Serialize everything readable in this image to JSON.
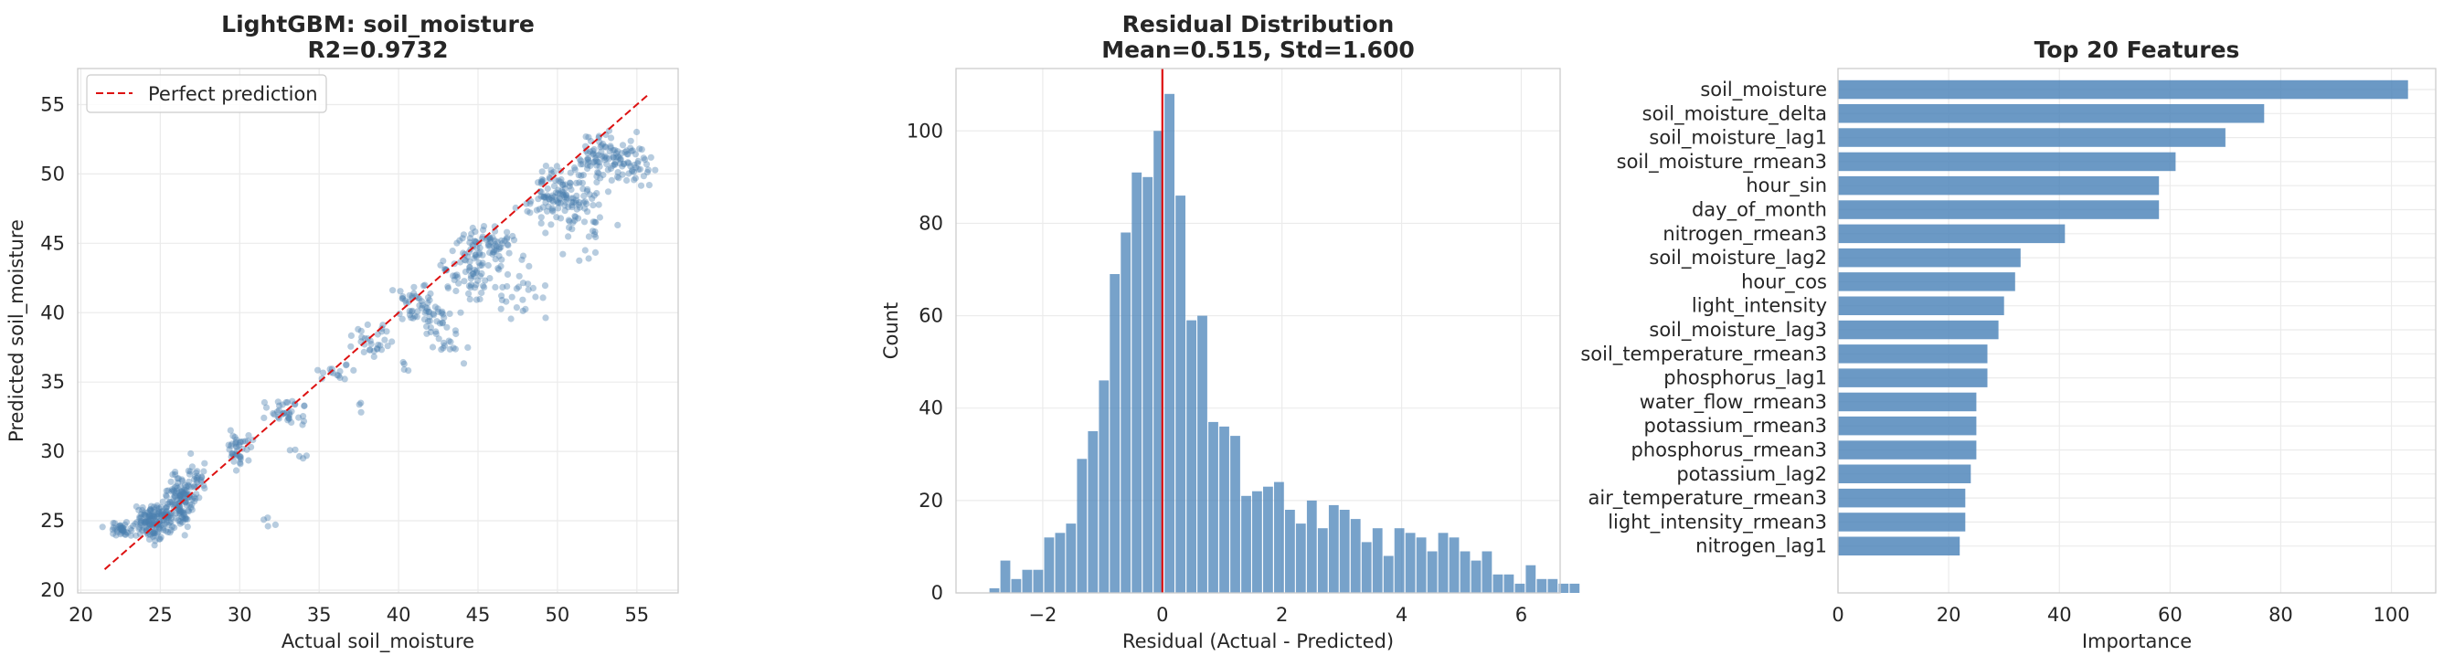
{
  "colors": {
    "points": "#4a7fb0",
    "bars": "#4a83b8",
    "reference_line": "#dd1111",
    "grid": "#ebebeb",
    "axes": "#cccccc"
  },
  "chart_data": [
    {
      "type": "scatter",
      "title": "LightGBM: soil_moisture",
      "subtitle": "R2=0.9732",
      "xlabel": "Actual soil_moisture",
      "ylabel": "Predicted soil_moisture",
      "xlim": [
        19.8,
        57.6
      ],
      "ylim": [
        19.8,
        57.6
      ],
      "xticks": [
        20,
        25,
        30,
        35,
        40,
        45,
        50,
        55
      ],
      "yticks": [
        20,
        25,
        30,
        35,
        40,
        45,
        50,
        55
      ],
      "grid": true,
      "legend": {
        "position": "top-left",
        "entries": [
          "Perfect prediction"
        ]
      },
      "reference_line": {
        "name": "Perfect prediction",
        "x": [
          21.5,
          55.8
        ],
        "y": [
          21.5,
          55.8
        ],
        "style": "dashed"
      },
      "clusters": [
        {
          "cx": 22.8,
          "cy": 24.4,
          "sx": 0.5,
          "sy": 0.25,
          "n": 40
        },
        {
          "cx": 24.8,
          "cy": 25.0,
          "sx": 0.6,
          "sy": 0.6,
          "n": 150
        },
        {
          "cx": 26.3,
          "cy": 26.5,
          "sx": 0.5,
          "sy": 0.9,
          "n": 120
        },
        {
          "cx": 27.3,
          "cy": 28.0,
          "sx": 0.35,
          "sy": 0.6,
          "n": 25
        },
        {
          "cx": 30.0,
          "cy": 30.1,
          "sx": 0.4,
          "sy": 0.6,
          "n": 40
        },
        {
          "cx": 31.8,
          "cy": 25.0,
          "sx": 0.3,
          "sy": 0.3,
          "n": 4
        },
        {
          "cx": 33.0,
          "cy": 32.8,
          "sx": 0.7,
          "sy": 0.5,
          "n": 35
        },
        {
          "cx": 34.0,
          "cy": 29.7,
          "sx": 0.4,
          "sy": 0.2,
          "n": 5
        },
        {
          "cx": 36.0,
          "cy": 35.7,
          "sx": 0.5,
          "sy": 0.5,
          "n": 15
        },
        {
          "cx": 37.6,
          "cy": 33.1,
          "sx": 0.2,
          "sy": 0.3,
          "n": 3
        },
        {
          "cx": 38.5,
          "cy": 38.0,
          "sx": 0.6,
          "sy": 0.6,
          "n": 30
        },
        {
          "cx": 40.3,
          "cy": 36.0,
          "sx": 0.2,
          "sy": 0.3,
          "n": 4
        },
        {
          "cx": 41.5,
          "cy": 40.5,
          "sx": 0.9,
          "sy": 0.8,
          "n": 60
        },
        {
          "cx": 43.0,
          "cy": 38.5,
          "sx": 0.6,
          "sy": 1.0,
          "n": 25
        },
        {
          "cx": 44.5,
          "cy": 43.5,
          "sx": 0.8,
          "sy": 1.2,
          "n": 80
        },
        {
          "cx": 46.0,
          "cy": 45.0,
          "sx": 0.8,
          "sy": 0.6,
          "n": 50
        },
        {
          "cx": 47.5,
          "cy": 42.0,
          "sx": 1.0,
          "sy": 1.2,
          "n": 30
        },
        {
          "cx": 50.0,
          "cy": 48.5,
          "sx": 1.0,
          "sy": 0.9,
          "n": 110
        },
        {
          "cx": 51.5,
          "cy": 46.5,
          "sx": 1.0,
          "sy": 1.2,
          "n": 40
        },
        {
          "cx": 53.3,
          "cy": 51.0,
          "sx": 1.1,
          "sy": 0.9,
          "n": 110
        },
        {
          "cx": 55.0,
          "cy": 50.5,
          "sx": 0.5,
          "sy": 0.8,
          "n": 20
        }
      ]
    },
    {
      "type": "bar",
      "subtype": "histogram",
      "title": "Residual Distribution",
      "subtitle": "Mean=0.515, Std=1.600",
      "xlabel": "Residual (Actual - Predicted)",
      "ylabel": "Count",
      "xlim": [
        -3.45,
        6.65
      ],
      "ylim": [
        0,
        113.5
      ],
      "xticks": [
        -2,
        0,
        2,
        4,
        6
      ],
      "yticks": [
        0,
        20,
        40,
        60,
        80,
        100
      ],
      "grid": true,
      "bin_start": -2.9,
      "bin_width": 0.183,
      "values": [
        1,
        7,
        3,
        5,
        5,
        12,
        13,
        15,
        29,
        35,
        46,
        69,
        78,
        91,
        90,
        100,
        108,
        86,
        59,
        60,
        37,
        36,
        34,
        21,
        22,
        23,
        24,
        18,
        15,
        20,
        14,
        19,
        18,
        16,
        11,
        14,
        8,
        14,
        13,
        12,
        9,
        13,
        12,
        9,
        7,
        9,
        4,
        4,
        2,
        6,
        3,
        3,
        2,
        2
      ],
      "reference_line": {
        "x": 0
      }
    },
    {
      "type": "bar",
      "orientation": "horizontal",
      "title": "Top 20 Features",
      "xlabel": "Importance",
      "xlim": [
        0,
        108
      ],
      "xticks": [
        0,
        20,
        40,
        60,
        80,
        100
      ],
      "grid": true,
      "categories": [
        "soil_moisture",
        "soil_moisture_delta",
        "soil_moisture_lag1",
        "soil_moisture_rmean3",
        "hour_sin",
        "day_of_month",
        "nitrogen_rmean3",
        "soil_moisture_lag2",
        "hour_cos",
        "light_intensity",
        "soil_moisture_lag3",
        "soil_temperature_rmean3",
        "phosphorus_lag1",
        "water_flow_rmean3",
        "potassium_rmean3",
        "phosphorus_rmean3",
        "potassium_lag2",
        "air_temperature_rmean3",
        "light_intensity_rmean3",
        "nitrogen_lag1"
      ],
      "values": [
        103,
        77,
        70,
        61,
        58,
        58,
        41,
        33,
        32,
        30,
        29,
        27,
        27,
        25,
        25,
        25,
        24,
        23,
        23,
        22
      ]
    }
  ]
}
